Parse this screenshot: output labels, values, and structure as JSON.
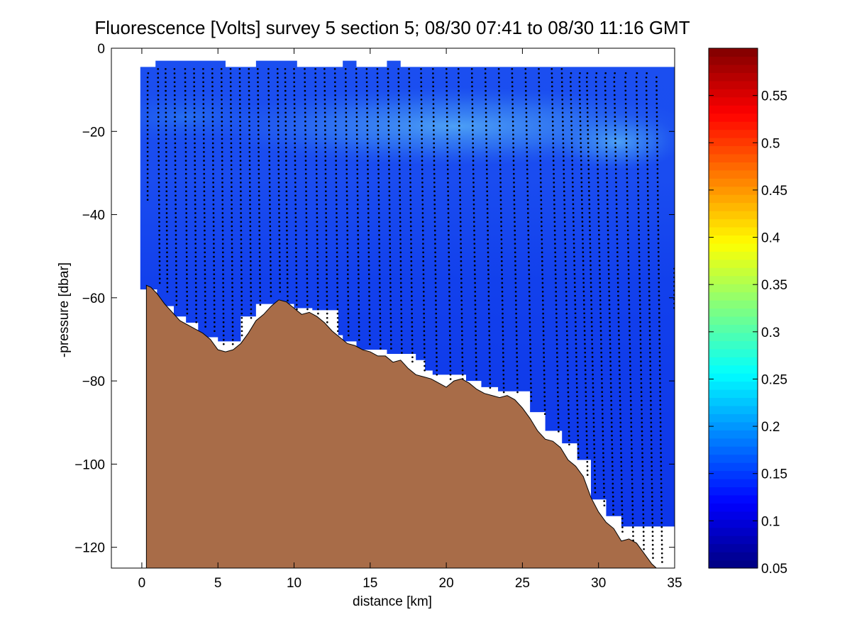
{
  "chart_data": [
    {
      "type": "heatmap",
      "title": "Fluorescence [Volts] survey 5 section 5; 08/30 07:41 to 08/30 11:16 GMT",
      "xlabel": "distance [km]",
      "ylabel": "-pressure [dbar]",
      "xlim": [
        -2,
        35
      ],
      "ylim": [
        -125,
        0
      ],
      "xticks": [
        0,
        5,
        10,
        15,
        20,
        25,
        30,
        35
      ],
      "yticks": [
        -120,
        -100,
        -80,
        -60,
        -40,
        -20,
        0
      ],
      "grid": false,
      "colors": {
        "field_deep": "#0a2de6",
        "field_mid": "#1446ee",
        "field_light": "#2a7df2",
        "bathymetry": "#a86c48",
        "cast_marker": "#000000"
      },
      "data_top": -4.5,
      "data_top_steps": [
        {
          "x0": 0.9,
          "x1": 5.5,
          "y": -3
        },
        {
          "x0": 7.5,
          "x1": 10.2,
          "y": -3
        },
        {
          "x0": 13.2,
          "x1": 14.1,
          "y": -3
        },
        {
          "x0": 16.1,
          "x1": 17.0,
          "y": -3
        }
      ],
      "data_bottom_steps": [
        {
          "x0": -0.1,
          "x1": 1.0,
          "y": -58
        },
        {
          "x0": 1.0,
          "x1": 2.1,
          "y": -62
        },
        {
          "x0": 2.1,
          "x1": 2.9,
          "y": -64.5
        },
        {
          "x0": 2.9,
          "x1": 3.7,
          "y": -66
        },
        {
          "x0": 3.7,
          "x1": 5.0,
          "y": -69.5
        },
        {
          "x0": 5.0,
          "x1": 6.5,
          "y": -70.5
        },
        {
          "x0": 6.5,
          "x1": 7.5,
          "y": -64.5
        },
        {
          "x0": 7.5,
          "x1": 10.0,
          "y": -61.5
        },
        {
          "x0": 10.0,
          "x1": 11.2,
          "y": -62.5
        },
        {
          "x0": 11.2,
          "x1": 12.9,
          "y": -63
        },
        {
          "x0": 12.9,
          "x1": 13.2,
          "y": -69
        },
        {
          "x0": 13.2,
          "x1": 14.1,
          "y": -70.5
        },
        {
          "x0": 14.1,
          "x1": 16.1,
          "y": -72.5
        },
        {
          "x0": 16.1,
          "x1": 17.1,
          "y": -73.5
        },
        {
          "x0": 17.1,
          "x1": 18.0,
          "y": -73.5
        },
        {
          "x0": 18.0,
          "x1": 18.6,
          "y": -75
        },
        {
          "x0": 18.6,
          "x1": 19.1,
          "y": -77.5
        },
        {
          "x0": 19.1,
          "x1": 21.3,
          "y": -78.5
        },
        {
          "x0": 21.3,
          "x1": 22.3,
          "y": -80
        },
        {
          "x0": 22.3,
          "x1": 23.4,
          "y": -81.5
        },
        {
          "x0": 23.4,
          "x1": 24.4,
          "y": -82.5
        },
        {
          "x0": 24.4,
          "x1": 25.5,
          "y": -82.5
        },
        {
          "x0": 25.5,
          "x1": 26.5,
          "y": -87.5
        },
        {
          "x0": 26.5,
          "x1": 27.6,
          "y": -92
        },
        {
          "x0": 27.6,
          "x1": 28.6,
          "y": -95
        },
        {
          "x0": 28.6,
          "x1": 29.5,
          "y": -99
        },
        {
          "x0": 29.5,
          "x1": 30.5,
          "y": -108.5
        },
        {
          "x0": 30.5,
          "x1": 31.5,
          "y": -112.5
        },
        {
          "x0": 31.5,
          "x1": 32.5,
          "y": -115
        },
        {
          "x0": 32.5,
          "x1": 35.0,
          "y": -115
        }
      ],
      "bathymetry": {
        "x": [
          0.3,
          0.6,
          1.0,
          1.5,
          2.0,
          2.5,
          3.0,
          3.5,
          4.0,
          4.5,
          5.0,
          5.5,
          6.0,
          6.5,
          7.0,
          7.5,
          8.0,
          8.5,
          9.0,
          9.5,
          10.0,
          10.5,
          11.0,
          11.5,
          12.0,
          12.5,
          13.0,
          13.5,
          14.0,
          14.5,
          15.0,
          15.5,
          16.0,
          16.5,
          17.0,
          17.5,
          18.0,
          18.5,
          19.0,
          19.5,
          20.0,
          20.5,
          21.0,
          21.5,
          22.0,
          22.5,
          23.0,
          23.5,
          24.0,
          24.5,
          25.0,
          25.5,
          26.0,
          26.5,
          27.0,
          27.5,
          28.0,
          28.5,
          29.0,
          29.5,
          30.0,
          30.5,
          31.0,
          31.5,
          32.0,
          32.5,
          33.0,
          33.5,
          33.8
        ],
        "y": [
          -57,
          -57.5,
          -59,
          -61.5,
          -63.5,
          -65.5,
          -66.5,
          -67.5,
          -68.5,
          -70,
          -72.5,
          -73,
          -72.5,
          -71,
          -68.5,
          -65.5,
          -64,
          -62,
          -60.5,
          -61,
          -62.5,
          -64,
          -63.5,
          -64.5,
          -66,
          -68,
          -69.5,
          -71,
          -71.5,
          -72.5,
          -73,
          -74,
          -74,
          -75.5,
          -75,
          -77,
          -78.5,
          -79,
          -79.5,
          -80.5,
          -81.5,
          -80,
          -79.5,
          -80.5,
          -82,
          -83,
          -83.5,
          -84,
          -83.5,
          -84.5,
          -86.5,
          -89,
          -92,
          -94,
          -94.5,
          -96,
          -99,
          -100.5,
          -103,
          -108,
          -111.5,
          -114,
          -115.5,
          -118.5,
          -118,
          -119,
          -121.5,
          -124,
          -125
        ]
      },
      "casts": {
        "x": [
          0.4,
          1.2,
          1.7,
          2.3,
          3.0,
          3.6,
          4.2,
          4.8,
          5.4,
          6.0,
          6.6,
          7.2,
          7.8,
          8.5,
          9.1,
          9.6,
          10.2,
          10.9,
          11.6,
          12.2,
          12.9,
          13.6,
          14.3,
          15.0,
          15.7,
          16.4,
          17.1,
          17.8,
          18.6,
          19.4,
          20.3,
          21.1,
          22.0,
          22.9,
          23.8,
          24.7,
          25.6,
          26.5,
          27.4,
          28.1,
          28.7,
          29.3,
          29.8,
          30.4,
          31.0,
          31.6,
          32.3,
          33.0,
          33.6,
          34.2,
          35.0
        ],
        "top": [
          -6,
          -5,
          -5,
          -5,
          -5,
          -5,
          -5,
          -5,
          -5,
          -5,
          -5,
          -5,
          -5,
          -5,
          -5,
          -5,
          -5,
          -5,
          -5,
          -5,
          -5,
          -5,
          -5,
          -5,
          -5,
          -5,
          -5,
          -5,
          -5,
          -5,
          -5,
          -5,
          -5,
          -5,
          -5,
          -5,
          -5,
          -5,
          -5,
          -5,
          -6,
          -6,
          -6,
          -6,
          -6,
          -6,
          -6,
          -6,
          -6,
          -7,
          -53
        ],
        "bottom": [
          -37,
          -57,
          -59,
          -62,
          -64,
          -66,
          -67,
          -69,
          -72,
          -72,
          -70,
          -65,
          -62,
          -60,
          -59,
          -61,
          -63,
          -63,
          -64,
          -66,
          -68,
          -70,
          -71,
          -72,
          -73,
          -73,
          -74,
          -76,
          -78,
          -79,
          -80,
          -80,
          -80,
          -82,
          -83,
          -83,
          -85,
          -88,
          -93,
          -96,
          -99,
          -103,
          -107,
          -110,
          -113,
          -117,
          -119,
          -121,
          -123,
          -124,
          -63
        ],
        "tilt": [
          0,
          0.08,
          0.08,
          0.09,
          0.09,
          0.1,
          0.1,
          0.1,
          0.1,
          0.1,
          0.1,
          0.1,
          0.11,
          0.11,
          0.11,
          0.11,
          0.12,
          0.12,
          0.12,
          0.12,
          0.13,
          0.13,
          0.13,
          0.14,
          0.14,
          0.14,
          0.15,
          0.15,
          0.16,
          0.17,
          0.18,
          0.19,
          0.2,
          0.21,
          0.22,
          0.24,
          0.25,
          0.27,
          0.3,
          0.33,
          0.35,
          0.36,
          0.37,
          0.37,
          0.37,
          0.37,
          0.35,
          0.33,
          0.3,
          0.25,
          0
        ],
        "spacing_dbar": 1.05
      }
    },
    {
      "type": "colorbar",
      "ylim": [
        0.05,
        0.6
      ],
      "ticks": [
        "0.05",
        "0.1",
        "0.15",
        "0.2",
        "0.25",
        "0.3",
        "0.35",
        "0.4",
        "0.45",
        "0.5",
        "0.55"
      ],
      "tick_values": [
        0.05,
        0.1,
        0.15,
        0.2,
        0.25,
        0.3,
        0.35,
        0.4,
        0.45,
        0.5,
        0.55
      ],
      "levels": 64,
      "colormap": "jet"
    }
  ]
}
